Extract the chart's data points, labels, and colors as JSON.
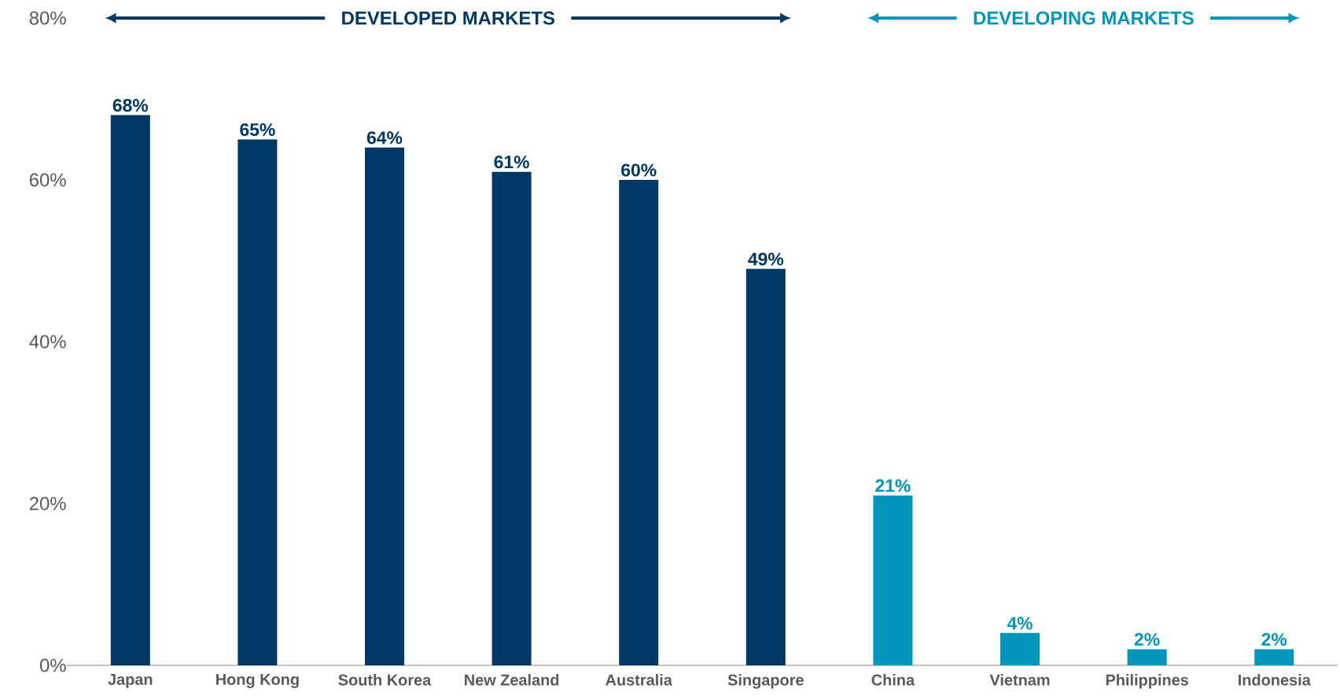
{
  "chart_data": {
    "type": "bar",
    "categories": [
      "Japan",
      "Hong Kong",
      "South Korea",
      "New Zealand",
      "Australia",
      "Singapore",
      "China",
      "Vietnam",
      "Philippines",
      "Indonesia"
    ],
    "values": [
      68,
      65,
      64,
      61,
      60,
      49,
      21,
      4,
      2,
      2
    ],
    "value_labels": [
      "68%",
      "65%",
      "64%",
      "61%",
      "60%",
      "49%",
      "21%",
      "4%",
      "2%",
      "2%"
    ],
    "colors": [
      "#003865",
      "#003865",
      "#003865",
      "#003865",
      "#003865",
      "#003865",
      "#0095bb",
      "#0095bb",
      "#0095bb",
      "#0095bb"
    ],
    "ylim": [
      0,
      80
    ],
    "yticks": [
      {
        "value": 0,
        "label": "0%"
      },
      {
        "value": 20,
        "label": "20%"
      },
      {
        "value": 40,
        "label": "40%"
      },
      {
        "value": 60,
        "label": "60%"
      },
      {
        "value": 80,
        "label": "80%"
      }
    ],
    "annotations": [
      "DEVELOPED MARKETS",
      "DEVELOPING MARKETS"
    ],
    "grid": false
  }
}
